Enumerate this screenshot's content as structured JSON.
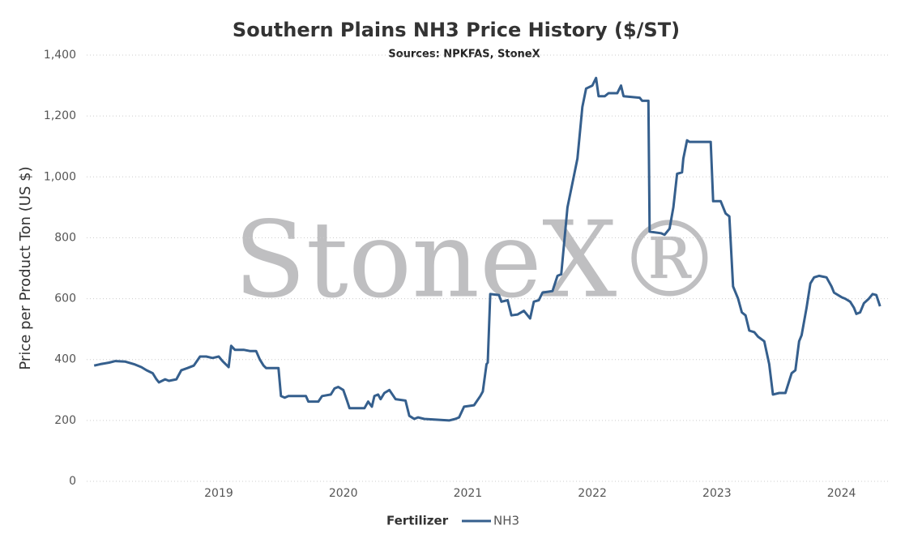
{
  "chart_data": {
    "type": "line",
    "title": "Southern Plains NH3 Price History ($/ST)",
    "subtitle": "Sources: NPKFAS, StoneX",
    "watermark": "StoneX®",
    "y_label": "Price per Product Ton (US $)",
    "legend_title": "Fertilizer",
    "legend": "bottom",
    "grid": true,
    "xlim": [
      2017.94,
      2024.38
    ],
    "xticks": [
      2019,
      2020,
      2021,
      2022,
      2023,
      2024
    ],
    "ylim": [
      0,
      1400
    ],
    "yticks": [
      0,
      200,
      400,
      600,
      800,
      {
        "value": 1000,
        "label": "1,000"
      },
      {
        "value": 1200,
        "label": "1,200"
      },
      {
        "value": 1400,
        "label": "1,400"
      }
    ],
    "x": [
      2018.0,
      2018.05,
      2018.12,
      2018.17,
      2018.25,
      2018.32,
      2018.38,
      2018.42,
      2018.47,
      2018.5,
      2018.52,
      2018.57,
      2018.6,
      2018.66,
      2018.7,
      2018.75,
      2018.8,
      2018.85,
      2018.9,
      2018.95,
      2019.0,
      2019.03,
      2019.08,
      2019.1,
      2019.13,
      2019.2,
      2019.25,
      2019.3,
      2019.33,
      2019.36,
      2019.38,
      2019.48,
      2019.5,
      2019.53,
      2019.56,
      2019.7,
      2019.72,
      2019.8,
      2019.83,
      2019.9,
      2019.93,
      2019.96,
      2020.0,
      2020.03,
      2020.05,
      2020.17,
      2020.2,
      2020.23,
      2020.25,
      2020.28,
      2020.3,
      2020.33,
      2020.37,
      2020.42,
      2020.5,
      2020.53,
      2020.57,
      2020.6,
      2020.65,
      2020.85,
      2020.9,
      2020.93,
      2020.97,
      2021.05,
      2021.1,
      2021.12,
      2021.15,
      2021.16,
      2021.18,
      2021.25,
      2021.27,
      2021.32,
      2021.35,
      2021.4,
      2021.45,
      2021.5,
      2021.53,
      2021.57,
      2021.6,
      2021.68,
      2021.72,
      2021.75,
      2021.8,
      2021.85,
      2021.88,
      2021.92,
      2021.95,
      2022.0,
      2022.03,
      2022.05,
      2022.1,
      2022.13,
      2022.2,
      2022.23,
      2022.25,
      2022.38,
      2022.4,
      2022.45,
      2022.46,
      2022.55,
      2022.58,
      2022.62,
      2022.65,
      2022.68,
      2022.72,
      2022.73,
      2022.76,
      2022.78,
      2022.95,
      2022.97,
      2023.03,
      2023.07,
      2023.1,
      2023.13,
      2023.17,
      2023.2,
      2023.23,
      2023.26,
      2023.3,
      2023.33,
      2023.38,
      2023.42,
      2023.45,
      2023.5,
      2023.55,
      2023.6,
      2023.63,
      2023.66,
      2023.68,
      2023.72,
      2023.75,
      2023.78,
      2023.82,
      2023.88,
      2023.92,
      2023.94,
      2024.0,
      2024.03,
      2024.07,
      2024.1,
      2024.12,
      2024.15,
      2024.18,
      2024.22,
      2024.25,
      2024.28,
      2024.31
    ],
    "series": [
      {
        "name": "NH3",
        "color": "#355f8d",
        "values": [
          380,
          385,
          390,
          395,
          393,
          385,
          375,
          365,
          355,
          335,
          325,
          335,
          330,
          335,
          365,
          372,
          380,
          410,
          410,
          405,
          410,
          395,
          375,
          445,
          432,
          432,
          428,
          428,
          400,
          380,
          372,
          372,
          280,
          275,
          280,
          280,
          262,
          262,
          280,
          285,
          305,
          310,
          300,
          265,
          240,
          240,
          262,
          245,
          280,
          285,
          270,
          290,
          300,
          270,
          265,
          215,
          205,
          210,
          205,
          200,
          205,
          210,
          245,
          250,
          280,
          295,
          385,
          390,
          615,
          612,
          590,
          595,
          545,
          548,
          560,
          535,
          590,
          595,
          620,
          625,
          675,
          680,
          900,
          1000,
          1060,
          1230,
          1290,
          1300,
          1325,
          1265,
          1265,
          1275,
          1275,
          1300,
          1265,
          1260,
          1250,
          1250,
          820,
          815,
          810,
          830,
          900,
          1010,
          1015,
          1060,
          1120,
          1115,
          1115,
          920,
          920,
          880,
          870,
          640,
          600,
          555,
          545,
          495,
          490,
          475,
          460,
          385,
          285,
          290,
          290,
          355,
          365,
          460,
          480,
          570,
          650,
          670,
          675,
          670,
          640,
          620,
          605,
          600,
          590,
          570,
          550,
          555,
          585,
          600,
          615,
          612,
          575
        ]
      }
    ]
  }
}
